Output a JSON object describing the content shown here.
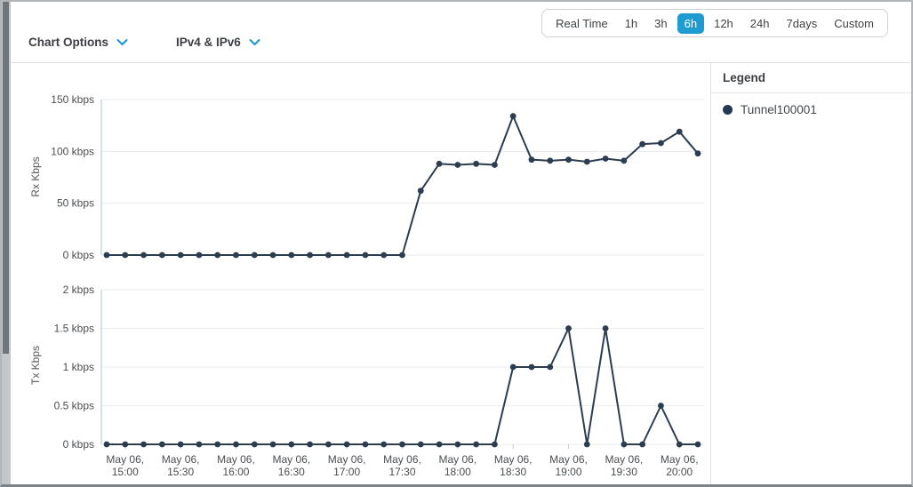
{
  "header": {
    "chart_options_label": "Chart Options",
    "ip_version_label": "IPv4 & IPv6"
  },
  "time_ranges": {
    "options": [
      "Real Time",
      "1h",
      "3h",
      "6h",
      "12h",
      "24h",
      "7days",
      "Custom"
    ],
    "selected": "6h"
  },
  "legend": {
    "title": "Legend",
    "items": [
      {
        "label": "Tunnel100001",
        "color": "#243a52"
      }
    ]
  },
  "colors": {
    "accent_blue": "#1697d4",
    "selected_range_bg": "#1e9cd2",
    "line": "#2b3d4f",
    "gridline": "#eaecee",
    "axis_line": "#ccd6e0",
    "axis_text": "#4b4e52"
  },
  "chart_data": [
    {
      "type": "line",
      "ylabel": "Rx Kbps",
      "x": [
        "14:50",
        "15:00",
        "15:10",
        "15:20",
        "15:30",
        "15:40",
        "15:50",
        "16:00",
        "16:10",
        "16:20",
        "16:30",
        "16:40",
        "16:50",
        "17:00",
        "17:10",
        "17:20",
        "17:30",
        "17:40",
        "17:50",
        "18:00",
        "18:10",
        "18:20",
        "18:30",
        "18:40",
        "18:50",
        "19:00",
        "19:10",
        "19:20",
        "19:30",
        "19:40",
        "19:50",
        "20:00",
        "20:10"
      ],
      "series": [
        {
          "name": "Tunnel100001",
          "values": [
            0,
            0,
            0,
            0,
            0,
            0,
            0,
            0,
            0,
            0,
            0,
            0,
            0,
            0,
            0,
            0,
            0,
            62,
            88,
            87,
            88,
            87,
            134,
            92,
            91,
            92,
            90,
            93,
            91,
            107,
            108,
            119,
            98
          ],
          "color": "#2b3d4f"
        }
      ],
      "ylim": [
        0,
        150
      ],
      "y_ticks": [
        {
          "value": 150,
          "label": "150 kbps"
        },
        {
          "value": 100,
          "label": "100 kbps"
        },
        {
          "value": 50,
          "label": "50 kbps"
        },
        {
          "value": 0,
          "label": "0 kbps"
        }
      ],
      "x_tick_date": "May 06,",
      "x_ticks": [
        "15:00",
        "15:30",
        "16:00",
        "16:30",
        "17:00",
        "17:30",
        "18:00",
        "18:30",
        "19:00",
        "19:30",
        "20:00"
      ],
      "show_x_labels": false,
      "grid": true,
      "legend_position": "right"
    },
    {
      "type": "line",
      "ylabel": "Tx Kbps",
      "x": [
        "14:50",
        "15:00",
        "15:10",
        "15:20",
        "15:30",
        "15:40",
        "15:50",
        "16:00",
        "16:10",
        "16:20",
        "16:30",
        "16:40",
        "16:50",
        "17:00",
        "17:10",
        "17:20",
        "17:30",
        "17:40",
        "17:50",
        "18:00",
        "18:10",
        "18:20",
        "18:30",
        "18:40",
        "18:50",
        "19:00",
        "19:10",
        "19:20",
        "19:30",
        "19:40",
        "19:50",
        "20:00",
        "20:10"
      ],
      "series": [
        {
          "name": "Tunnel100001",
          "values": [
            0,
            0,
            0,
            0,
            0,
            0,
            0,
            0,
            0,
            0,
            0,
            0,
            0,
            0,
            0,
            0,
            0,
            0,
            0,
            0,
            0,
            0,
            1,
            1,
            1,
            1.5,
            0,
            1.5,
            0,
            0,
            0.5,
            0,
            0
          ],
          "color": "#2b3d4f"
        }
      ],
      "ylim": [
        0,
        2
      ],
      "y_ticks": [
        {
          "value": 2,
          "label": "2 kbps"
        },
        {
          "value": 1.5,
          "label": "1.5 kbps"
        },
        {
          "value": 1,
          "label": "1 kbps"
        },
        {
          "value": 0.5,
          "label": "0.5 kbps"
        },
        {
          "value": 0,
          "label": "0 kbps"
        }
      ],
      "x_tick_date": "May 06,",
      "x_ticks": [
        "15:00",
        "15:30",
        "16:00",
        "16:30",
        "17:00",
        "17:30",
        "18:00",
        "18:30",
        "19:00",
        "19:30",
        "20:00"
      ],
      "show_x_labels": true,
      "grid": true,
      "legend_position": "right"
    }
  ]
}
